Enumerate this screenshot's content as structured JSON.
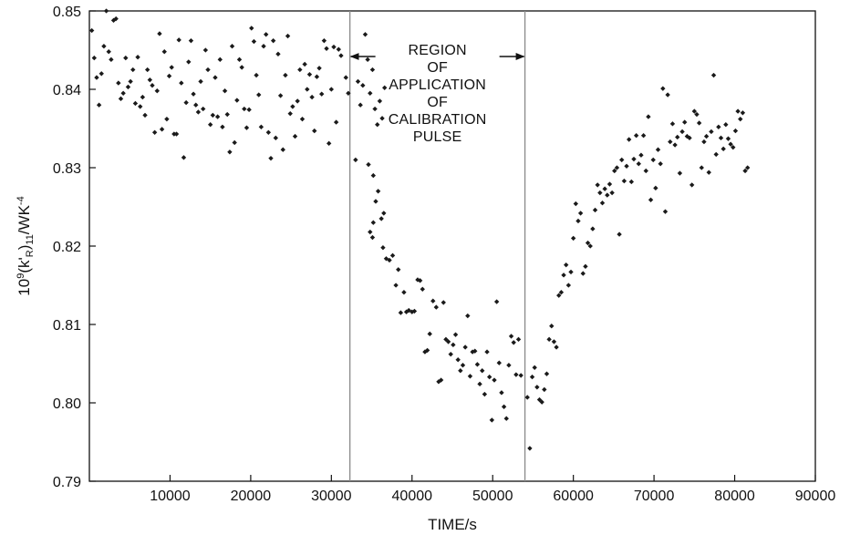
{
  "chart_data": {
    "type": "scatter",
    "xlabel": "TIME/s",
    "ylabel": {
      "prefix": "10",
      "prefix_sup": "9",
      "mid": "(k'",
      "sub1": "R",
      "mid2": ")",
      "sub2": "11",
      "mid3": "/WK",
      "sup2": "-4"
    },
    "xlim": [
      0,
      90000
    ],
    "ylim": [
      0.79,
      0.85
    ],
    "x_ticks": [
      10000,
      20000,
      30000,
      40000,
      50000,
      60000,
      70000,
      80000,
      90000
    ],
    "y_ticks": [
      "0.79",
      "0.80",
      "0.81",
      "0.82",
      "0.83",
      "0.84",
      "0.85"
    ],
    "grid": false,
    "vlines": [
      32300,
      54000
    ],
    "annotation": {
      "lines": [
        "REGION",
        "OF",
        "APPLICATION",
        "OF",
        "CALIBRATION",
        "PULSE"
      ],
      "arrow_from": 32300,
      "arrow_to": 54000
    },
    "points": [
      [
        300,
        0.8475
      ],
      [
        600,
        0.844
      ],
      [
        900,
        0.8415
      ],
      [
        1200,
        0.838
      ],
      [
        1500,
        0.842
      ],
      [
        1800,
        0.8455
      ],
      [
        2100,
        0.85
      ],
      [
        2400,
        0.8448
      ],
      [
        2700,
        0.8438
      ],
      [
        3000,
        0.8488
      ],
      [
        3300,
        0.849
      ],
      [
        3600,
        0.8408
      ],
      [
        3900,
        0.8388
      ],
      [
        4200,
        0.8395
      ],
      [
        4500,
        0.844
      ],
      [
        4800,
        0.8403
      ],
      [
        5100,
        0.841
      ],
      [
        5400,
        0.8425
      ],
      [
        5700,
        0.8382
      ],
      [
        6000,
        0.8441
      ],
      [
        6300,
        0.8378
      ],
      [
        6600,
        0.839
      ],
      [
        6900,
        0.8367
      ],
      [
        7200,
        0.8425
      ],
      [
        7500,
        0.8412
      ],
      [
        7800,
        0.8405
      ],
      [
        8100,
        0.8345
      ],
      [
        8400,
        0.8398
      ],
      [
        8700,
        0.8471
      ],
      [
        9000,
        0.8349
      ],
      [
        9300,
        0.8448
      ],
      [
        9600,
        0.8362
      ],
      [
        9900,
        0.8417
      ],
      [
        10200,
        0.8428
      ],
      [
        10500,
        0.8343
      ],
      [
        10800,
        0.8343
      ],
      [
        11100,
        0.8463
      ],
      [
        11400,
        0.8408
      ],
      [
        11700,
        0.8313
      ],
      [
        12000,
        0.8383
      ],
      [
        12300,
        0.8435
      ],
      [
        12600,
        0.8462
      ],
      [
        12900,
        0.8394
      ],
      [
        13200,
        0.838
      ],
      [
        13500,
        0.8371
      ],
      [
        13800,
        0.841
      ],
      [
        14100,
        0.8375
      ],
      [
        14400,
        0.845
      ],
      [
        14700,
        0.8425
      ],
      [
        15000,
        0.8355
      ],
      [
        15300,
        0.8367
      ],
      [
        15600,
        0.8415
      ],
      [
        15900,
        0.8365
      ],
      [
        16200,
        0.8438
      ],
      [
        16500,
        0.8352
      ],
      [
        16800,
        0.8398
      ],
      [
        17100,
        0.8368
      ],
      [
        17400,
        0.832
      ],
      [
        17700,
        0.8455
      ],
      [
        18000,
        0.8332
      ],
      [
        18300,
        0.8386
      ],
      [
        18600,
        0.8438
      ],
      [
        18900,
        0.8428
      ],
      [
        19200,
        0.8375
      ],
      [
        19500,
        0.8351
      ],
      [
        19800,
        0.8374
      ],
      [
        20100,
        0.8478
      ],
      [
        20400,
        0.8461
      ],
      [
        20700,
        0.8418
      ],
      [
        21000,
        0.8393
      ],
      [
        21300,
        0.8352
      ],
      [
        21600,
        0.8455
      ],
      [
        21900,
        0.847
      ],
      [
        22200,
        0.8345
      ],
      [
        22500,
        0.8312
      ],
      [
        22800,
        0.8462
      ],
      [
        23100,
        0.8338
      ],
      [
        23400,
        0.8445
      ],
      [
        23700,
        0.8392
      ],
      [
        24000,
        0.8323
      ],
      [
        24300,
        0.8418
      ],
      [
        24600,
        0.8468
      ],
      [
        24900,
        0.8369
      ],
      [
        25200,
        0.8378
      ],
      [
        25500,
        0.834
      ],
      [
        25800,
        0.8385
      ],
      [
        26100,
        0.8425
      ],
      [
        26400,
        0.8362
      ],
      [
        26700,
        0.8432
      ],
      [
        27000,
        0.84
      ],
      [
        27300,
        0.8419
      ],
      [
        27600,
        0.839
      ],
      [
        27900,
        0.8347
      ],
      [
        28200,
        0.8416
      ],
      [
        28500,
        0.8427
      ],
      [
        28800,
        0.8394
      ],
      [
        29100,
        0.8462
      ],
      [
        29400,
        0.8452
      ],
      [
        29700,
        0.8331
      ],
      [
        30000,
        0.84
      ],
      [
        30300,
        0.8454
      ],
      [
        30600,
        0.8358
      ],
      [
        30900,
        0.8451
      ],
      [
        31200,
        0.8443
      ],
      [
        31800,
        0.8415
      ],
      [
        32100,
        0.8395
      ],
      [
        33300,
        0.841
      ],
      [
        33600,
        0.838
      ],
      [
        33900,
        0.8405
      ],
      [
        34200,
        0.847
      ],
      [
        34500,
        0.8438
      ],
      [
        34800,
        0.8395
      ],
      [
        35100,
        0.8425
      ],
      [
        35400,
        0.8375
      ],
      [
        35700,
        0.8355
      ],
      [
        36000,
        0.8385
      ],
      [
        36300,
        0.8363
      ],
      [
        36600,
        0.8402
      ],
      [
        33000,
        0.831
      ],
      [
        34600,
        0.8304
      ],
      [
        35200,
        0.829
      ],
      [
        35800,
        0.827
      ],
      [
        35500,
        0.8257
      ],
      [
        36200,
        0.8235
      ],
      [
        36500,
        0.8242
      ],
      [
        35200,
        0.823
      ],
      [
        34800,
        0.8218
      ],
      [
        35100,
        0.8211
      ],
      [
        36400,
        0.8198
      ],
      [
        36800,
        0.8184
      ],
      [
        37200,
        0.8182
      ],
      [
        37600,
        0.8188
      ],
      [
        38000,
        0.815
      ],
      [
        38300,
        0.817
      ],
      [
        38600,
        0.8115
      ],
      [
        39000,
        0.8141
      ],
      [
        39300,
        0.8116
      ],
      [
        39600,
        0.8118
      ],
      [
        40000,
        0.8116
      ],
      [
        40300,
        0.8117
      ],
      [
        40700,
        0.8157
      ],
      [
        41000,
        0.8156
      ],
      [
        41300,
        0.8145
      ],
      [
        41600,
        0.8065
      ],
      [
        41900,
        0.8067
      ],
      [
        42200,
        0.8088
      ],
      [
        42600,
        0.813
      ],
      [
        43000,
        0.8122
      ],
      [
        43300,
        0.8027
      ],
      [
        43600,
        0.8029
      ],
      [
        43900,
        0.8128
      ],
      [
        44200,
        0.8081
      ],
      [
        44500,
        0.8078
      ],
      [
        44800,
        0.8062
      ],
      [
        45100,
        0.8074
      ],
      [
        45400,
        0.8087
      ],
      [
        45700,
        0.8055
      ],
      [
        46000,
        0.8041
      ],
      [
        46300,
        0.8048
      ],
      [
        46600,
        0.8071
      ],
      [
        46900,
        0.8111
      ],
      [
        47200,
        0.8034
      ],
      [
        47500,
        0.8065
      ],
      [
        47800,
        0.8066
      ],
      [
        48100,
        0.8049
      ],
      [
        48400,
        0.8024
      ],
      [
        48700,
        0.8041
      ],
      [
        49000,
        0.8011
      ],
      [
        49300,
        0.8065
      ],
      [
        49600,
        0.8033
      ],
      [
        49900,
        0.7978
      ],
      [
        50200,
        0.8029
      ],
      [
        50500,
        0.8129
      ],
      [
        50800,
        0.8051
      ],
      [
        51100,
        0.8013
      ],
      [
        51400,
        0.7995
      ],
      [
        51700,
        0.798
      ],
      [
        52000,
        0.8048
      ],
      [
        52300,
        0.8085
      ],
      [
        52600,
        0.8077
      ],
      [
        52900,
        0.8036
      ],
      [
        53200,
        0.8081
      ],
      [
        53500,
        0.8035
      ],
      [
        54300,
        0.8007
      ],
      [
        54600,
        0.7942
      ],
      [
        54900,
        0.8033
      ],
      [
        55200,
        0.8045
      ],
      [
        55500,
        0.802
      ],
      [
        55800,
        0.8004
      ],
      [
        56100,
        0.8001
      ],
      [
        56400,
        0.8017
      ],
      [
        56700,
        0.8037
      ],
      [
        57000,
        0.8081
      ],
      [
        57300,
        0.8098
      ],
      [
        57600,
        0.8078
      ],
      [
        57900,
        0.8071
      ],
      [
        58200,
        0.8137
      ],
      [
        58500,
        0.8141
      ],
      [
        58800,
        0.8163
      ],
      [
        59100,
        0.8176
      ],
      [
        59400,
        0.815
      ],
      [
        59700,
        0.8167
      ],
      [
        60000,
        0.821
      ],
      [
        60300,
        0.8254
      ],
      [
        60600,
        0.8232
      ],
      [
        60900,
        0.8242
      ],
      [
        61200,
        0.8165
      ],
      [
        61500,
        0.8174
      ],
      [
        61800,
        0.8204
      ],
      [
        62100,
        0.82
      ],
      [
        62400,
        0.8222
      ],
      [
        62700,
        0.8246
      ],
      [
        63000,
        0.8278
      ],
      [
        63300,
        0.8268
      ],
      [
        63600,
        0.8255
      ],
      [
        63900,
        0.8273
      ],
      [
        64200,
        0.8265
      ],
      [
        64500,
        0.8279
      ],
      [
        64800,
        0.8268
      ],
      [
        65100,
        0.8296
      ],
      [
        65400,
        0.83
      ],
      [
        65700,
        0.8215
      ],
      [
        66000,
        0.831
      ],
      [
        66300,
        0.8283
      ],
      [
        66600,
        0.8302
      ],
      [
        66900,
        0.8336
      ],
      [
        67200,
        0.8282
      ],
      [
        67500,
        0.8311
      ],
      [
        67800,
        0.8341
      ],
      [
        68100,
        0.8305
      ],
      [
        68400,
        0.8316
      ],
      [
        68700,
        0.8341
      ],
      [
        69000,
        0.8296
      ],
      [
        69300,
        0.8365
      ],
      [
        69600,
        0.8259
      ],
      [
        69900,
        0.831
      ],
      [
        70200,
        0.8274
      ],
      [
        70500,
        0.8323
      ],
      [
        70800,
        0.8305
      ],
      [
        71100,
        0.8401
      ],
      [
        71400,
        0.8244
      ],
      [
        71700,
        0.8393
      ],
      [
        72000,
        0.8333
      ],
      [
        72300,
        0.8356
      ],
      [
        72600,
        0.8329
      ],
      [
        72900,
        0.8339
      ],
      [
        73200,
        0.8293
      ],
      [
        73500,
        0.8346
      ],
      [
        73800,
        0.8358
      ],
      [
        74100,
        0.834
      ],
      [
        74400,
        0.8338
      ],
      [
        74700,
        0.8278
      ],
      [
        75000,
        0.8372
      ],
      [
        75300,
        0.8368
      ],
      [
        75600,
        0.8357
      ],
      [
        75900,
        0.83
      ],
      [
        76200,
        0.8333
      ],
      [
        76500,
        0.834
      ],
      [
        76800,
        0.8294
      ],
      [
        77100,
        0.8346
      ],
      [
        77400,
        0.8418
      ],
      [
        77700,
        0.8317
      ],
      [
        78000,
        0.8352
      ],
      [
        78300,
        0.8338
      ],
      [
        78600,
        0.8324
      ],
      [
        78900,
        0.8355
      ],
      [
        79200,
        0.8337
      ],
      [
        79500,
        0.833
      ],
      [
        79800,
        0.8326
      ],
      [
        80100,
        0.8347
      ],
      [
        80400,
        0.8372
      ],
      [
        80700,
        0.8362
      ],
      [
        81000,
        0.837
      ],
      [
        81300,
        0.8296
      ],
      [
        81600,
        0.83
      ]
    ]
  }
}
